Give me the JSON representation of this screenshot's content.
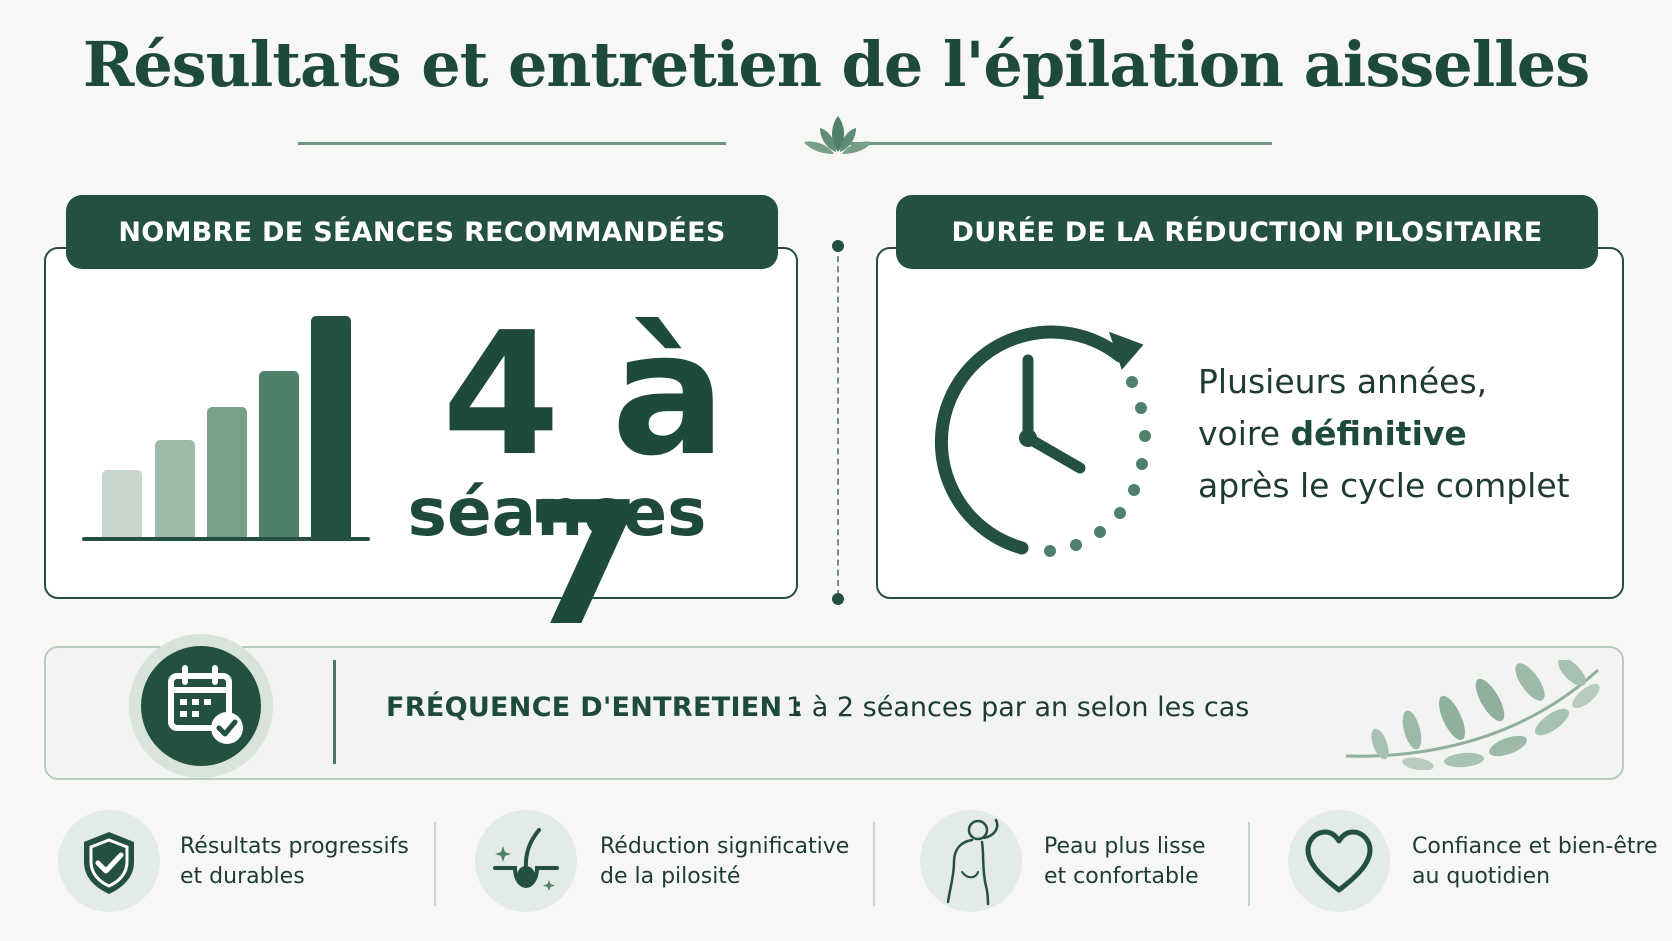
{
  "title": "Résultats et entretien de l'épilation aisselles",
  "colors": {
    "primary": "#23503f",
    "accent_light": "#d8e3dc",
    "text": "#1e3b32",
    "bar_shades": [
      "#c6d6cc",
      "#9dbaa9",
      "#77a08a",
      "#4f806a",
      "#23503f"
    ]
  },
  "sessions_card": {
    "header": "NOMBRE DE SÉANCES RECOMMANDÉES",
    "value": "4 à 7",
    "unit": "séances",
    "icon": "bar-chart-icon"
  },
  "duration_card": {
    "header": "DURÉE DE LA RÉDUCTION PILOSITAIRE",
    "line1": "Plusieurs années,",
    "line2_prefix": "voire ",
    "line2_bold": "définitive",
    "line3": "après le cycle complet",
    "icon": "clock-icon"
  },
  "frequency": {
    "label": "FRÉQUENCE D'ENTRETIEN :",
    "value": "1 à 2 séances par an selon les cas",
    "icon": "calendar-check-icon"
  },
  "benefits": [
    {
      "line1": "Résultats progressifs",
      "line2": "et durables",
      "icon": "shield-check-icon"
    },
    {
      "line1": "Réduction significative",
      "line2": "de la pilosité",
      "icon": "hair-follicle-icon"
    },
    {
      "line1": "Peau plus lisse",
      "line2": "et confortable",
      "icon": "body-underarm-icon"
    },
    {
      "line1": "Confiance et bien-être",
      "line2": "au quotidien",
      "icon": "heart-icon"
    }
  ]
}
